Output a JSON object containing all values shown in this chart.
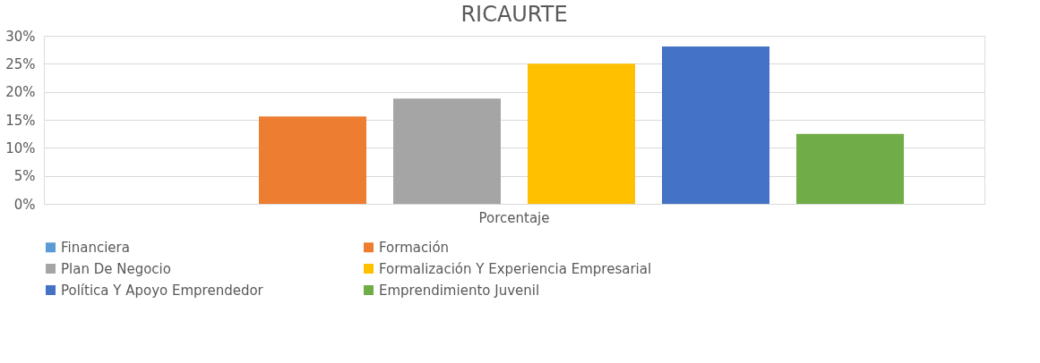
{
  "chart_data": {
    "type": "bar",
    "title": "RICAURTE",
    "categories": [
      "Porcentaje"
    ],
    "series": [
      {
        "name": "Financiera",
        "color": "#5b9bd5",
        "values": [
          0
        ]
      },
      {
        "name": "Formación",
        "color": "#ed7d31",
        "values": [
          15.6
        ]
      },
      {
        "name": "Plan De Negocio",
        "color": "#a5a5a5",
        "values": [
          18.8
        ]
      },
      {
        "name": "Formalización Y Experiencia Empresarial",
        "color": "#ffc000",
        "values": [
          25
        ]
      },
      {
        "name": "Política Y Apoyo Emprendedor",
        "color": "#4472c4",
        "values": [
          28.1
        ]
      },
      {
        "name": "Emprendimiento Juvenil",
        "color": "#70ad47",
        "values": [
          12.5
        ]
      }
    ],
    "ylim": [
      0,
      30
    ],
    "yticks": [
      {
        "value": 0,
        "label": "0%"
      },
      {
        "value": 5,
        "label": "5%"
      },
      {
        "value": 10,
        "label": "10%"
      },
      {
        "value": 15,
        "label": "15%"
      },
      {
        "value": 20,
        "label": "20%"
      },
      {
        "value": 25,
        "label": "25%"
      },
      {
        "value": 30,
        "label": "30%"
      }
    ],
    "grid": "y",
    "legend": "bottom"
  }
}
